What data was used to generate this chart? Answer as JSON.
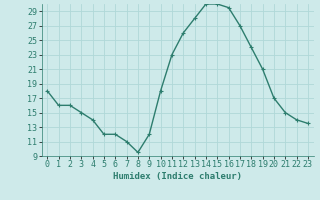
{
  "x": [
    0,
    1,
    2,
    3,
    4,
    5,
    6,
    7,
    8,
    9,
    10,
    11,
    12,
    13,
    14,
    15,
    16,
    17,
    18,
    19,
    20,
    21,
    22,
    23
  ],
  "y": [
    18,
    16,
    16,
    15,
    14,
    12,
    12,
    11,
    9.5,
    12,
    18,
    23,
    26,
    28,
    30,
    30,
    29.5,
    27,
    24,
    21,
    17,
    15,
    14,
    13.5
  ],
  "line_color": "#2d7d6e",
  "marker": "+",
  "marker_size": 3,
  "marker_linewidth": 0.8,
  "bg_color": "#ceeaea",
  "grid_color": "#b0d8d8",
  "xlabel": "Humidex (Indice chaleur)",
  "ylim": [
    9,
    30
  ],
  "xlim": [
    -0.5,
    23.5
  ],
  "yticks": [
    9,
    11,
    13,
    15,
    17,
    19,
    21,
    23,
    25,
    27,
    29
  ],
  "xticks": [
    0,
    1,
    2,
    3,
    4,
    5,
    6,
    7,
    8,
    9,
    10,
    11,
    12,
    13,
    14,
    15,
    16,
    17,
    18,
    19,
    20,
    21,
    22,
    23
  ],
  "xtick_labels": [
    "0",
    "1",
    "2",
    "3",
    "4",
    "5",
    "6",
    "7",
    "8",
    "9",
    "10",
    "11",
    "12",
    "13",
    "14",
    "15",
    "16",
    "17",
    "18",
    "19",
    "20",
    "21",
    "22",
    "23"
  ],
  "label_fontsize": 6.5,
  "tick_fontsize": 6.0,
  "line_width": 1.0
}
